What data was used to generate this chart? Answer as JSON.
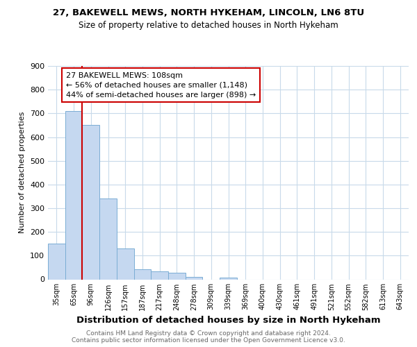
{
  "title1": "27, BAKEWELL MEWS, NORTH HYKEHAM, LINCOLN, LN6 8TU",
  "title2": "Size of property relative to detached houses in North Hykeham",
  "xlabel": "Distribution of detached houses by size in North Hykeham",
  "ylabel": "Number of detached properties",
  "categories": [
    "35sqm",
    "65sqm",
    "96sqm",
    "126sqm",
    "157sqm",
    "187sqm",
    "217sqm",
    "248sqm",
    "278sqm",
    "309sqm",
    "339sqm",
    "369sqm",
    "400sqm",
    "430sqm",
    "461sqm",
    "491sqm",
    "521sqm",
    "552sqm",
    "582sqm",
    "613sqm",
    "643sqm"
  ],
  "values": [
    150,
    710,
    650,
    340,
    130,
    42,
    35,
    28,
    10,
    0,
    8,
    0,
    0,
    0,
    0,
    0,
    0,
    0,
    0,
    0,
    0
  ],
  "bar_color": "#c5d8f0",
  "bar_edge_color": "#7aadd4",
  "vline_x": 1.5,
  "vline_color": "#cc0000",
  "annotation_line1": "27 BAKEWELL MEWS: 108sqm",
  "annotation_line2": "← 56% of detached houses are smaller (1,148)",
  "annotation_line3": "44% of semi-detached houses are larger (898) →",
  "annotation_box_color": "#ffffff",
  "annotation_box_edge": "#cc0000",
  "ylim": [
    0,
    900
  ],
  "yticks": [
    0,
    100,
    200,
    300,
    400,
    500,
    600,
    700,
    800,
    900
  ],
  "footer": "Contains HM Land Registry data © Crown copyright and database right 2024.\nContains public sector information licensed under the Open Government Licence v3.0.",
  "bg_color": "#ffffff",
  "grid_color": "#c8daea"
}
